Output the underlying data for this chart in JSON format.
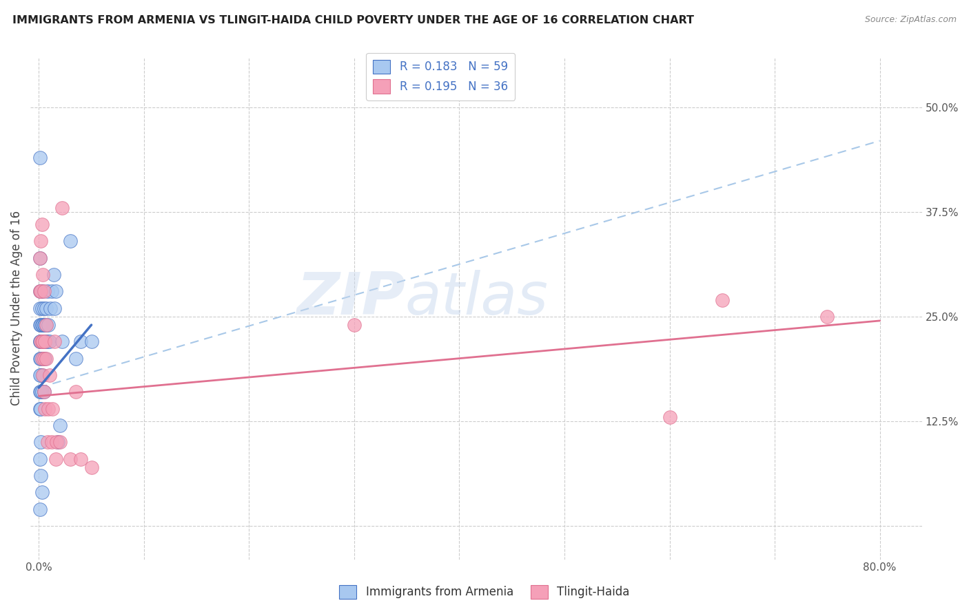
{
  "title": "IMMIGRANTS FROM ARMENIA VS TLINGIT-HAIDA CHILD POVERTY UNDER THE AGE OF 16 CORRELATION CHART",
  "source": "Source: ZipAtlas.com",
  "ylabel_label": "Child Poverty Under the Age of 16",
  "x_ticks": [
    0.0,
    0.1,
    0.2,
    0.3,
    0.4,
    0.5,
    0.6,
    0.7,
    0.8
  ],
  "x_tick_labels": [
    "0.0%",
    "",
    "",
    "",
    "",
    "",
    "",
    "",
    "80.0%"
  ],
  "y_ticks": [
    0.0,
    0.125,
    0.25,
    0.375,
    0.5
  ],
  "y_tick_labels": [
    "",
    "12.5%",
    "25.0%",
    "37.5%",
    "50.0%"
  ],
  "xlim": [
    -0.008,
    0.84
  ],
  "ylim": [
    -0.04,
    0.56
  ],
  "color_blue": "#A8C8F0",
  "color_pink": "#F5A0B8",
  "line_blue": "#4472C4",
  "line_pink": "#E07090",
  "line_dashed_color": "#A8C8E8",
  "blue_scatter_x": [
    0.001,
    0.001,
    0.001,
    0.001,
    0.001,
    0.001,
    0.001,
    0.001,
    0.001,
    0.001,
    0.002,
    0.002,
    0.002,
    0.002,
    0.002,
    0.002,
    0.002,
    0.002,
    0.002,
    0.003,
    0.003,
    0.003,
    0.003,
    0.003,
    0.003,
    0.004,
    0.004,
    0.004,
    0.004,
    0.005,
    0.005,
    0.005,
    0.005,
    0.006,
    0.006,
    0.006,
    0.007,
    0.007,
    0.007,
    0.008,
    0.008,
    0.009,
    0.01,
    0.011,
    0.012,
    0.014,
    0.015,
    0.016,
    0.018,
    0.02,
    0.022,
    0.03,
    0.035,
    0.04,
    0.05,
    0.001,
    0.001,
    0.001
  ],
  "blue_scatter_y": [
    0.44,
    0.32,
    0.28,
    0.26,
    0.24,
    0.22,
    0.2,
    0.16,
    0.14,
    0.08,
    0.28,
    0.24,
    0.22,
    0.2,
    0.18,
    0.16,
    0.14,
    0.1,
    0.06,
    0.26,
    0.24,
    0.22,
    0.18,
    0.16,
    0.04,
    0.28,
    0.24,
    0.22,
    0.2,
    0.26,
    0.24,
    0.22,
    0.16,
    0.24,
    0.22,
    0.2,
    0.26,
    0.24,
    0.22,
    0.28,
    0.22,
    0.24,
    0.22,
    0.26,
    0.28,
    0.3,
    0.26,
    0.28,
    0.1,
    0.12,
    0.22,
    0.34,
    0.2,
    0.22,
    0.22,
    0.22,
    0.18,
    0.02
  ],
  "pink_scatter_x": [
    0.001,
    0.001,
    0.002,
    0.002,
    0.002,
    0.003,
    0.003,
    0.003,
    0.004,
    0.004,
    0.004,
    0.005,
    0.005,
    0.005,
    0.006,
    0.006,
    0.007,
    0.007,
    0.008,
    0.009,
    0.01,
    0.012,
    0.013,
    0.015,
    0.016,
    0.017,
    0.02,
    0.022,
    0.03,
    0.035,
    0.04,
    0.05,
    0.3,
    0.6,
    0.65,
    0.75
  ],
  "pink_scatter_y": [
    0.32,
    0.28,
    0.34,
    0.28,
    0.22,
    0.36,
    0.22,
    0.2,
    0.3,
    0.22,
    0.18,
    0.28,
    0.2,
    0.16,
    0.22,
    0.14,
    0.24,
    0.2,
    0.1,
    0.14,
    0.18,
    0.1,
    0.14,
    0.22,
    0.08,
    0.1,
    0.1,
    0.38,
    0.08,
    0.16,
    0.08,
    0.07,
    0.24,
    0.13,
    0.27,
    0.25
  ],
  "blue_line_x0": 0.0,
  "blue_line_y0": 0.165,
  "blue_line_x1": 0.05,
  "blue_line_y1": 0.24,
  "dashed_line_x0": 0.0,
  "dashed_line_y0": 0.165,
  "dashed_line_x1": 0.8,
  "dashed_line_y1": 0.46,
  "pink_line_x0": 0.0,
  "pink_line_y0": 0.155,
  "pink_line_x1": 0.8,
  "pink_line_y1": 0.245
}
